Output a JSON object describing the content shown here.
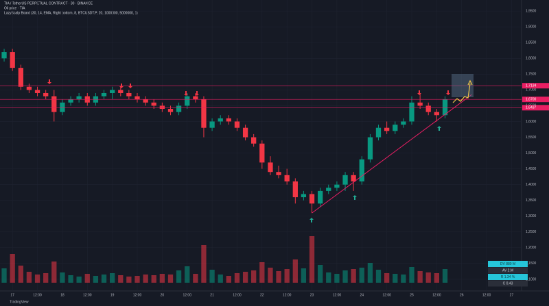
{
  "header": {
    "title": "TIA / TetherUS PERPETUAL CONTRACT · 30 · BINANCE",
    "symbol_line": "Oil price · TIA",
    "indicator": "LazyScalp Board (30, 14, EMA, Right bottom, 8, BTCUSDT.P, 20, 1000000, 5000000, 1)"
  },
  "board": {
    "rows": [
      "DV 880 M",
      "AV 2.M",
      "R 1.34 %",
      "C 0.43"
    ]
  },
  "footer": "TradingView",
  "chart_data": {
    "type": "candlestick",
    "x": [
      16.833,
      17,
      17.167,
      17.333,
      17.5,
      17.667,
      17.833,
      18,
      18.167,
      18.333,
      18.5,
      18.667,
      18.833,
      19,
      19.167,
      19.333,
      19.5,
      19.667,
      19.833,
      20,
      20.167,
      20.333,
      20.5,
      20.667,
      20.833,
      21,
      21.167,
      21.333,
      21.5,
      21.667,
      21.833,
      22,
      22.167,
      22.333,
      22.5,
      22.667,
      22.833,
      23,
      23.167,
      23.333,
      23.5,
      23.667,
      23.833,
      24,
      24.167,
      24.333,
      24.5,
      24.667,
      24.833,
      25,
      25.167,
      25.333,
      25.5,
      25.667
    ],
    "open": [
      1.8,
      1.82,
      1.77,
      1.71,
      1.7,
      1.69,
      1.68,
      1.63,
      1.66,
      1.67,
      1.68,
      1.66,
      1.68,
      1.69,
      1.7,
      1.69,
      1.68,
      1.67,
      1.66,
      1.65,
      1.64,
      1.63,
      1.65,
      1.68,
      1.67,
      1.58,
      1.6,
      1.61,
      1.6,
      1.58,
      1.55,
      1.53,
      1.47,
      1.44,
      1.43,
      1.41,
      1.36,
      1.37,
      1.34,
      1.38,
      1.39,
      1.4,
      1.43,
      1.41,
      1.48,
      1.55,
      1.58,
      1.57,
      1.59,
      1.6,
      1.66,
      1.65,
      1.63,
      1.62
    ],
    "high": [
      1.83,
      1.83,
      1.78,
      1.72,
      1.71,
      1.7,
      1.7,
      1.67,
      1.68,
      1.69,
      1.69,
      1.69,
      1.7,
      1.71,
      1.71,
      1.7,
      1.69,
      1.68,
      1.67,
      1.66,
      1.65,
      1.66,
      1.69,
      1.69,
      1.68,
      1.61,
      1.62,
      1.62,
      1.61,
      1.59,
      1.56,
      1.54,
      1.49,
      1.46,
      1.45,
      1.42,
      1.38,
      1.38,
      1.39,
      1.4,
      1.41,
      1.44,
      1.44,
      1.49,
      1.56,
      1.59,
      1.6,
      1.6,
      1.61,
      1.68,
      1.69,
      1.66,
      1.64,
      1.68
    ],
    "low": [
      1.79,
      1.76,
      1.7,
      1.69,
      1.68,
      1.67,
      1.6,
      1.62,
      1.65,
      1.66,
      1.65,
      1.65,
      1.67,
      1.67,
      1.68,
      1.67,
      1.66,
      1.65,
      1.64,
      1.63,
      1.62,
      1.62,
      1.64,
      1.66,
      1.55,
      1.57,
      1.59,
      1.59,
      1.57,
      1.54,
      1.52,
      1.45,
      1.43,
      1.42,
      1.4,
      1.34,
      1.35,
      1.31,
      1.33,
      1.37,
      1.38,
      1.38,
      1.38,
      1.4,
      1.47,
      1.54,
      1.56,
      1.56,
      1.58,
      1.59,
      1.64,
      1.62,
      1.6,
      1.61
    ],
    "close": [
      1.82,
      1.77,
      1.71,
      1.7,
      1.69,
      1.68,
      1.63,
      1.66,
      1.67,
      1.68,
      1.66,
      1.68,
      1.69,
      1.7,
      1.69,
      1.68,
      1.67,
      1.66,
      1.65,
      1.64,
      1.63,
      1.65,
      1.68,
      1.67,
      1.58,
      1.6,
      1.61,
      1.6,
      1.58,
      1.55,
      1.53,
      1.47,
      1.44,
      1.43,
      1.41,
      1.36,
      1.37,
      1.34,
      1.38,
      1.39,
      1.4,
      1.43,
      1.41,
      1.48,
      1.55,
      1.58,
      1.57,
      1.59,
      1.6,
      1.66,
      1.65,
      1.63,
      1.62,
      1.67
    ],
    "volume": [
      2.1,
      4.2,
      2.5,
      1.6,
      1.2,
      1.4,
      3.1,
      1.5,
      1.1,
      0.9,
      1.3,
      1.0,
      1.2,
      1.4,
      1.1,
      0.9,
      1.0,
      1.2,
      1.1,
      1.3,
      1.2,
      1.8,
      2.4,
      1.3,
      5.5,
      1.9,
      1.2,
      1.0,
      1.4,
      1.6,
      1.8,
      3.0,
      2.2,
      1.7,
      2.0,
      3.4,
      2.1,
      6.8,
      2.6,
      1.5,
      1.3,
      1.8,
      2.0,
      2.2,
      2.9,
      1.9,
      1.4,
      1.3,
      1.2,
      2.3,
      1.7,
      1.5,
      1.4,
      2.0
    ],
    "up_color": "#089981",
    "down_color": "#f23645",
    "xlim": [
      16.75,
      27.2
    ],
    "xticks": [
      17,
      {
        "value": 17.5,
        "label": "12:00"
      },
      18,
      {
        "value": 18.5,
        "label": "12:00"
      },
      19,
      {
        "value": 19.5,
        "label": "12:00"
      },
      20,
      {
        "value": 20.5,
        "label": "12:00"
      },
      21,
      {
        "value": 21.5,
        "label": "12:00"
      },
      22,
      {
        "value": 22.5,
        "label": "12:00"
      },
      23,
      {
        "value": 23.5,
        "label": "12:00"
      },
      24,
      {
        "value": 24.5,
        "label": "12:00"
      },
      25,
      {
        "value": 25.5,
        "label": "12:00"
      },
      26,
      {
        "value": 26.5,
        "label": "12:00"
      },
      27
    ],
    "ylim": [
      1.063,
      1.985
    ],
    "yticks": [
      {
        "value": 1.1,
        "label": "1,1000"
      },
      {
        "value": 1.15,
        "label": "1,1500"
      },
      {
        "value": 1.2,
        "label": "1,2000"
      },
      {
        "value": 1.25,
        "label": "1,2500"
      },
      {
        "value": 1.3,
        "label": "1,3000"
      },
      {
        "value": 1.35,
        "label": "1,3500"
      },
      {
        "value": 1.4,
        "label": "1,4000"
      },
      {
        "value": 1.45,
        "label": "1,4500"
      },
      {
        "value": 1.5,
        "label": "1,5000"
      },
      {
        "value": 1.55,
        "label": "1,5500"
      },
      {
        "value": 1.6,
        "label": "1,6000"
      },
      {
        "value": 1.65,
        "label": "1,6500"
      },
      {
        "value": 1.7,
        "label": "1,7000"
      },
      {
        "value": 1.75,
        "label": "1,7500"
      },
      {
        "value": 1.8,
        "label": "1,8000"
      },
      {
        "value": 1.85,
        "label": "1,8500"
      },
      {
        "value": 1.9,
        "label": "1,9000"
      },
      {
        "value": 1.95,
        "label": "1,9500"
      }
    ],
    "vlim": [
      0,
      8
    ],
    "levels": [
      {
        "value": 1.7134,
        "label": "1,7134"
      },
      {
        "value": 1.67,
        "label": "1,6700"
      },
      {
        "value": 1.6437,
        "label": "1,6437"
      }
    ],
    "level_color": "#e91e63",
    "trendline": {
      "x": [
        23.0,
        26.2
      ],
      "y": [
        1.31,
        1.685
      ]
    }
  }
}
